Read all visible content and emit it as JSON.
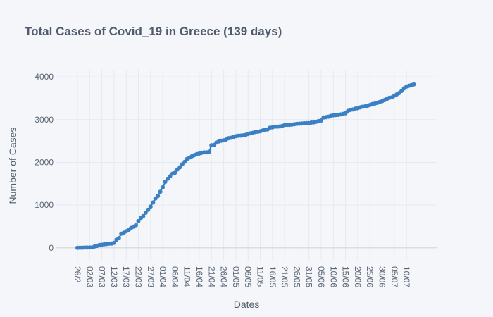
{
  "chart_data": {
    "type": "scatter",
    "mode": "lines+markers",
    "title": "Total Cases of Covid_19 in Greece (139 days)",
    "xlabel": "Dates",
    "ylabel": "Number of Cases",
    "y_ticks": [
      0,
      1000,
      2000,
      3000,
      4000
    ],
    "ylim": [
      -300,
      4150
    ],
    "x_tick_labels": [
      "26/2",
      "02/03",
      "07/03",
      "12/03",
      "17/03",
      "22/03",
      "27/03",
      "01/04",
      "06/04",
      "11/04",
      "16/04",
      "21/04",
      "26/04",
      "01/05",
      "06/05",
      "11/05",
      "16/05",
      "21/05",
      "26/05",
      "31/05",
      "05/06",
      "10/06",
      "15/06",
      "20/06",
      "25/06",
      "30/06",
      "05/07",
      "10/07"
    ],
    "x_tick_index": [
      0,
      5,
      10,
      15,
      20,
      25,
      30,
      35,
      40,
      45,
      50,
      55,
      60,
      65,
      70,
      75,
      80,
      85,
      90,
      95,
      100,
      105,
      110,
      115,
      120,
      125,
      130,
      135
    ],
    "grid": true,
    "line_color": "#2f79c3",
    "marker_color": "#3b7fc4",
    "series": [
      {
        "values": [
          0,
          3,
          4,
          7,
          7,
          9,
          9,
          31,
          45,
          66,
          73,
          84,
          89,
          98,
          99,
          117,
          190,
          228,
          331,
          352,
          387,
          418,
          464,
          495,
          530,
          624,
          695,
          743,
          821,
          892,
          966,
          1061,
          1156,
          1212,
          1314,
          1415,
          1544,
          1613,
          1673,
          1735,
          1755,
          1832,
          1884,
          1955,
          2011,
          2081,
          2114,
          2145,
          2170,
          2192,
          2207,
          2224,
          2235,
          2235,
          2245,
          2401,
          2408,
          2463,
          2490,
          2506,
          2517,
          2534,
          2566,
          2576,
          2591,
          2612,
          2620,
          2626,
          2632,
          2642,
          2663,
          2678,
          2691,
          2710,
          2716,
          2726,
          2744,
          2760,
          2770,
          2810,
          2819,
          2834,
          2836,
          2840,
          2853,
          2873,
          2876,
          2878,
          2882,
          2892,
          2903,
          2906,
          2909,
          2915,
          2917,
          2918,
          2932,
          2937,
          2952,
          2967,
          2980,
          3049,
          3058,
          3068,
          3088,
          3102,
          3108,
          3112,
          3121,
          3134,
          3148,
          3203,
          3227,
          3237,
          3256,
          3266,
          3287,
          3302,
          3310,
          3321,
          3343,
          3366,
          3376,
          3390,
          3410,
          3432,
          3458,
          3486,
          3511,
          3519,
          3562,
          3589,
          3623,
          3672,
          3732,
          3772,
          3790,
          3810,
          3826
        ]
      }
    ]
  }
}
